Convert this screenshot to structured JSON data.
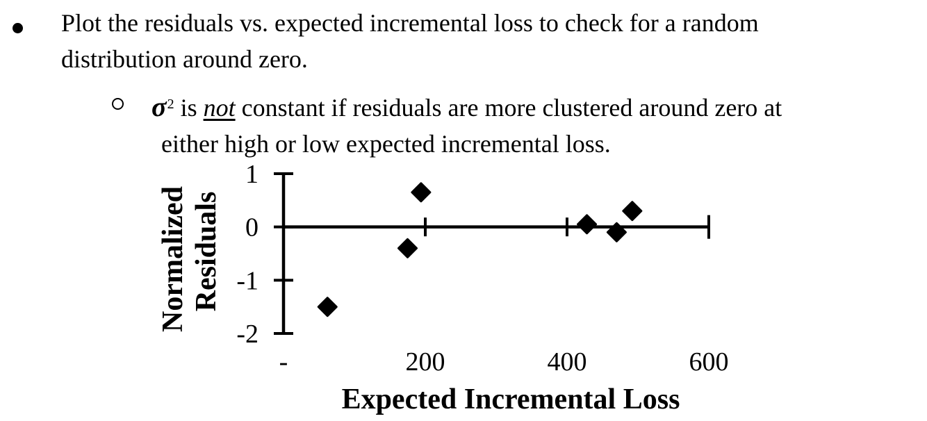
{
  "page": {
    "background": "#ffffff",
    "text_color": "#000000"
  },
  "bullets": {
    "level1": {
      "marker": "•",
      "lines": [
        "Plot the residuals vs. expected incremental loss to check for a random",
        "distribution around zero."
      ]
    },
    "level2": {
      "marker": "○",
      "line1": {
        "sigma": "σ",
        "superscript": "2",
        "before_not": "is",
        "not_word": "not",
        "after_not": "constant if residuals are more clustered around zero at"
      },
      "line2": "either high or low expected incremental loss."
    }
  },
  "chart_data": {
    "type": "scatter",
    "title": "",
    "xlabel": "Expected Incremental Loss",
    "ylabel": "Normalized Residuals",
    "ylabel_lines": [
      "Normalized",
      "Residuals"
    ],
    "xlim": [
      0,
      600
    ],
    "ylim": [
      -2,
      1
    ],
    "xticks": {
      "values": [
        0,
        200,
        400,
        600
      ],
      "labels": [
        "-",
        "200",
        "400",
        "600"
      ]
    },
    "yticks": {
      "values": [
        1,
        0,
        -1,
        -2
      ],
      "labels": [
        "1",
        "0",
        "-1",
        "-2"
      ]
    },
    "grid": false,
    "legend": null,
    "marker": "diamond",
    "marker_color": "#000000",
    "axis_color": "#000000",
    "points": [
      {
        "x": 62,
        "y": -1.5
      },
      {
        "x": 175,
        "y": -0.4
      },
      {
        "x": 194,
        "y": 0.65
      },
      {
        "x": 428,
        "y": 0.05
      },
      {
        "x": 470,
        "y": -0.1
      },
      {
        "x": 492,
        "y": 0.3
      }
    ]
  }
}
